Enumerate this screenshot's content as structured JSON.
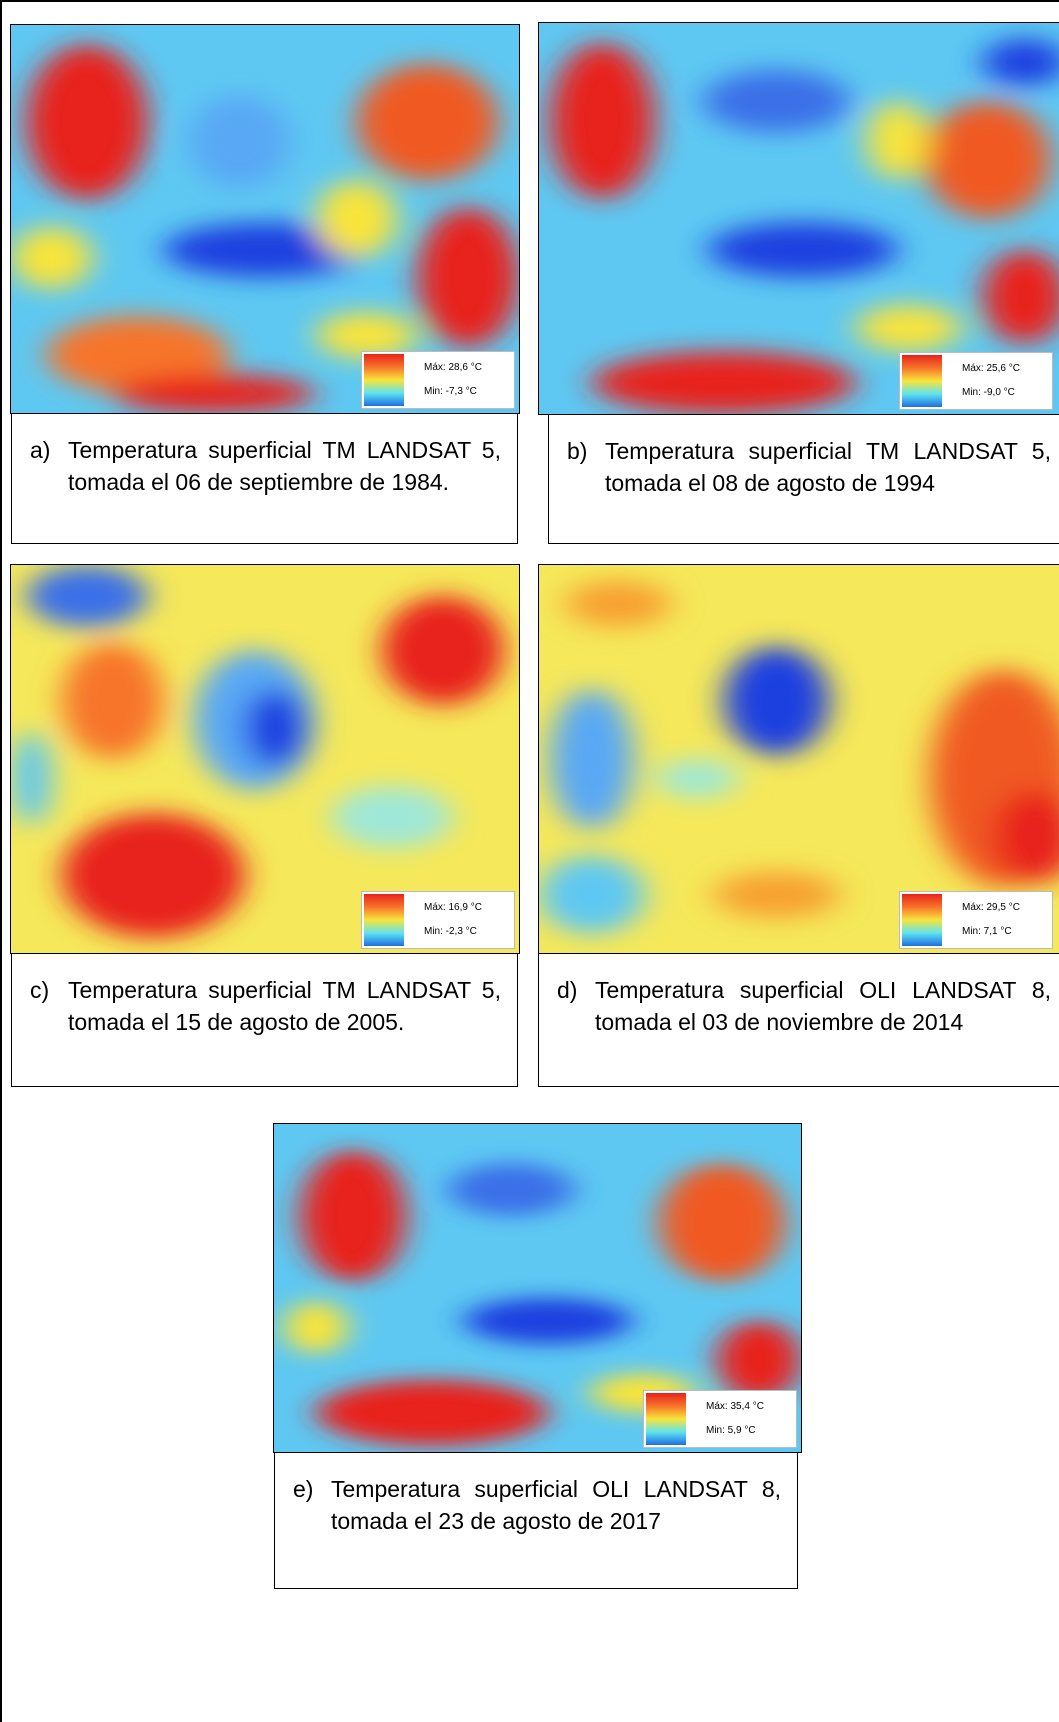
{
  "panels": [
    {
      "label": "a)",
      "caption": "Temperatura superficial TM LANDSAT 5, tomada el 06 de septiembre de 1984.",
      "legend_max": "Máx: 28,6 °C",
      "legend_min": "Min: -7,3 °C"
    },
    {
      "label": "b)",
      "caption": "Temperatura superficial TM LANDSAT 5, tomada el 08 de agosto de 1994",
      "legend_max": "Máx: 25,6 °C",
      "legend_min": "Min: -9,0 °C"
    },
    {
      "label": "c)",
      "caption": "Temperatura superficial TM LANDSAT 5, tomada el 15 de agosto de 2005.",
      "legend_max": "Máx: 16,9 °C",
      "legend_min": "Min: -2,3 °C"
    },
    {
      "label": "d)",
      "caption": "Temperatura superficial OLI LANDSAT 8, tomada el 03 de noviembre de 2014",
      "legend_max": "Máx: 29,5 °C",
      "legend_min": "Min: 7,1 °C"
    },
    {
      "label": "e)",
      "caption": "Temperatura superficial OLI LANDSAT 8, tomada el 23 de agosto de 2017",
      "legend_max": "Máx: 35,4 °C",
      "legend_min": "Min: 5,9 °C"
    }
  ]
}
